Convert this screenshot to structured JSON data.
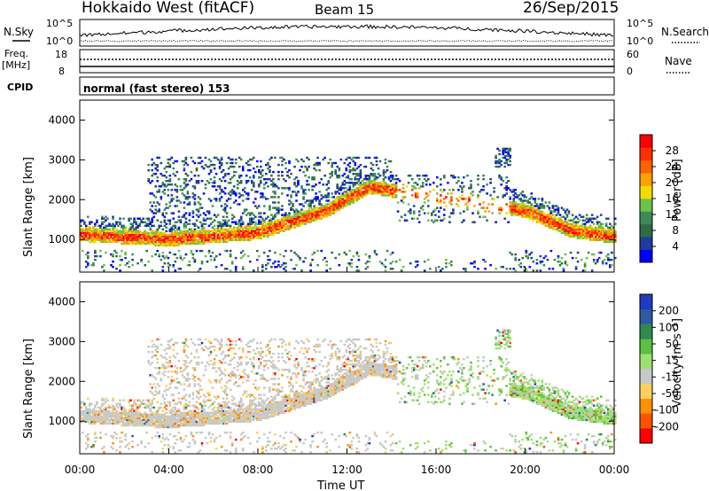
{
  "header": {
    "station": "Hokkaido West (fitACF)",
    "beam": "Beam 15",
    "date": "26/Sep/2015"
  },
  "panels": {
    "nsky": {
      "label": "N.Sky",
      "tick_hi": "10^5",
      "tick_lo": "10^0",
      "right_label": "N.Search",
      "right_hi": "10^5",
      "right_lo": "10^0"
    },
    "freq": {
      "label": "Freq.",
      "unit": "[MHz]",
      "tick_hi": "18",
      "tick_lo": "8",
      "right_label": "Nave",
      "right_hi": "60",
      "right_lo": "0"
    },
    "cpid": {
      "label": "CPID",
      "text": "normal (fast stereo) 153"
    }
  },
  "colorbars": {
    "power": {
      "title": "Power [dB]",
      "colors": [
        "#0000ff",
        "#1e3c9c",
        "#2f6b44",
        "#3d8a55",
        "#6cc24a",
        "#f0dc00",
        "#ffa000",
        "#ff6000",
        "#ff3000",
        "#ff0000"
      ],
      "ticks": [
        "4",
        "8",
        "12",
        "16",
        "20",
        "24",
        "28"
      ]
    },
    "velocity": {
      "title": "Velocity [m s⁻¹]",
      "colors": [
        "#ff0000",
        "#ff5000",
        "#ff9000",
        "#ffcf60",
        "#c8c8c8",
        "#9ee070",
        "#5cc040",
        "#2e8a50",
        "#2f5aa0",
        "#1f3cc0"
      ],
      "ticks": [
        "-200",
        "-100",
        "-50",
        "-15",
        "15",
        "50",
        "100",
        "200"
      ]
    }
  },
  "chart_data": [
    {
      "type": "heatmap",
      "title": "Power",
      "ylabel": "Slant Range [km]",
      "xlabel": "",
      "xlim": [
        "00:00",
        "24:00"
      ],
      "ylim": [
        180,
        4500
      ],
      "x_ticks": [
        "00:00",
        "04:00",
        "08:00",
        "12:00",
        "16:00",
        "20:00",
        "00:00"
      ],
      "y_ticks": [
        1000,
        2000,
        3000,
        4000
      ],
      "dominant_band": [
        {
          "t": 0,
          "range_km": 1100
        },
        {
          "t": 4,
          "range_km": 980
        },
        {
          "t": 8,
          "range_km": 1150
        },
        {
          "t": 11,
          "range_km": 1700
        },
        {
          "t": 13,
          "range_km": 2300
        },
        {
          "t": 20,
          "range_km": 1700
        },
        {
          "t": 22,
          "range_km": 1200
        },
        {
          "t": 24,
          "range_km": 1050
        }
      ]
    },
    {
      "type": "heatmap",
      "title": "Velocity",
      "ylabel": "Slant Range [km]",
      "xlabel": "Time UT",
      "xlim": [
        "00:00",
        "24:00"
      ],
      "ylim": [
        180,
        4500
      ],
      "x_ticks": [
        "00:00",
        "04:00",
        "08:00",
        "12:00",
        "16:00",
        "20:00",
        "00:00"
      ],
      "y_ticks": [
        1000,
        2000,
        3000,
        4000
      ]
    }
  ]
}
